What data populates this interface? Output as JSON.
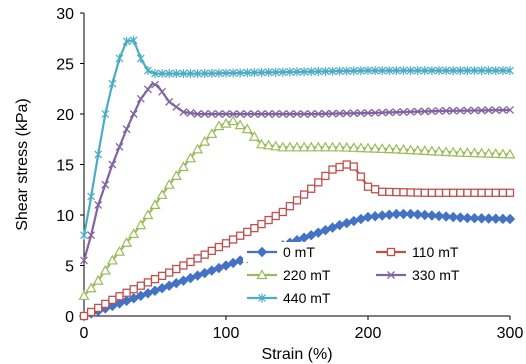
{
  "chart_data": {
    "type": "line",
    "xlabel": "Strain (%)",
    "ylabel": "Shear stress (kPa)",
    "xlim": [
      0,
      300
    ],
    "ylim": [
      0,
      30
    ],
    "xticks": [
      0,
      100,
      200,
      300
    ],
    "yticks": [
      0,
      5,
      10,
      15,
      20,
      25,
      30
    ],
    "grid": false,
    "legend_position": "bottom-center, two columns",
    "series": [
      {
        "name": "0 mT",
        "color": "#4472C4",
        "marker": "diamond",
        "points": [
          [
            0,
            0
          ],
          [
            20,
            1
          ],
          [
            40,
            2
          ],
          [
            60,
            3
          ],
          [
            80,
            4
          ],
          [
            100,
            5
          ],
          [
            120,
            6
          ],
          [
            140,
            7
          ],
          [
            160,
            8
          ],
          [
            180,
            9
          ],
          [
            200,
            9.8
          ],
          [
            220,
            10.1
          ],
          [
            230,
            10.1
          ],
          [
            250,
            9.9
          ],
          [
            270,
            9.7
          ],
          [
            300,
            9.6
          ]
        ]
      },
      {
        "name": "110 mT",
        "color": "#C0504D",
        "marker": "square",
        "points": [
          [
            0,
            0
          ],
          [
            20,
            1.6
          ],
          [
            40,
            3
          ],
          [
            60,
            4.3
          ],
          [
            80,
            5.7
          ],
          [
            100,
            7.2
          ],
          [
            120,
            8.7
          ],
          [
            140,
            10.3
          ],
          [
            160,
            12.6
          ],
          [
            175,
            14.5
          ],
          [
            185,
            15
          ],
          [
            190,
            14.8
          ],
          [
            200,
            12.8
          ],
          [
            210,
            12.3
          ],
          [
            240,
            12.2
          ],
          [
            300,
            12.2
          ]
        ]
      },
      {
        "name": "220 mT",
        "color": "#9BBB59",
        "marker": "triangle",
        "points": [
          [
            0,
            2
          ],
          [
            10,
            3.5
          ],
          [
            20,
            5.5
          ],
          [
            40,
            9
          ],
          [
            60,
            13
          ],
          [
            80,
            16.5
          ],
          [
            95,
            18.8
          ],
          [
            105,
            19.3
          ],
          [
            115,
            18.5
          ],
          [
            125,
            17
          ],
          [
            140,
            16.7
          ],
          [
            180,
            16.7
          ],
          [
            220,
            16.5
          ],
          [
            260,
            16.2
          ],
          [
            300,
            16
          ]
        ]
      },
      {
        "name": "330 mT",
        "color": "#8064A2",
        "marker": "x",
        "points": [
          [
            0,
            5.5
          ],
          [
            5,
            8
          ],
          [
            10,
            11
          ],
          [
            20,
            15
          ],
          [
            30,
            18.5
          ],
          [
            40,
            21.5
          ],
          [
            48,
            23
          ],
          [
            52,
            22.8
          ],
          [
            60,
            21.2
          ],
          [
            70,
            20.2
          ],
          [
            80,
            20
          ],
          [
            120,
            20
          ],
          [
            160,
            20
          ],
          [
            200,
            20.1
          ],
          [
            250,
            20.3
          ],
          [
            300,
            20.4
          ]
        ]
      },
      {
        "name": "440 mT",
        "color": "#4BACC6",
        "marker": "star",
        "points": [
          [
            0,
            8
          ],
          [
            4,
            11
          ],
          [
            10,
            16
          ],
          [
            15,
            20
          ],
          [
            20,
            23
          ],
          [
            25,
            25.5
          ],
          [
            30,
            27.2
          ],
          [
            35,
            27.3
          ],
          [
            40,
            25.5
          ],
          [
            45,
            24.3
          ],
          [
            50,
            24
          ],
          [
            80,
            24
          ],
          [
            120,
            24.1
          ],
          [
            160,
            24.2
          ],
          [
            200,
            24.3
          ],
          [
            240,
            24.3
          ],
          [
            300,
            24.3
          ]
        ]
      }
    ]
  }
}
